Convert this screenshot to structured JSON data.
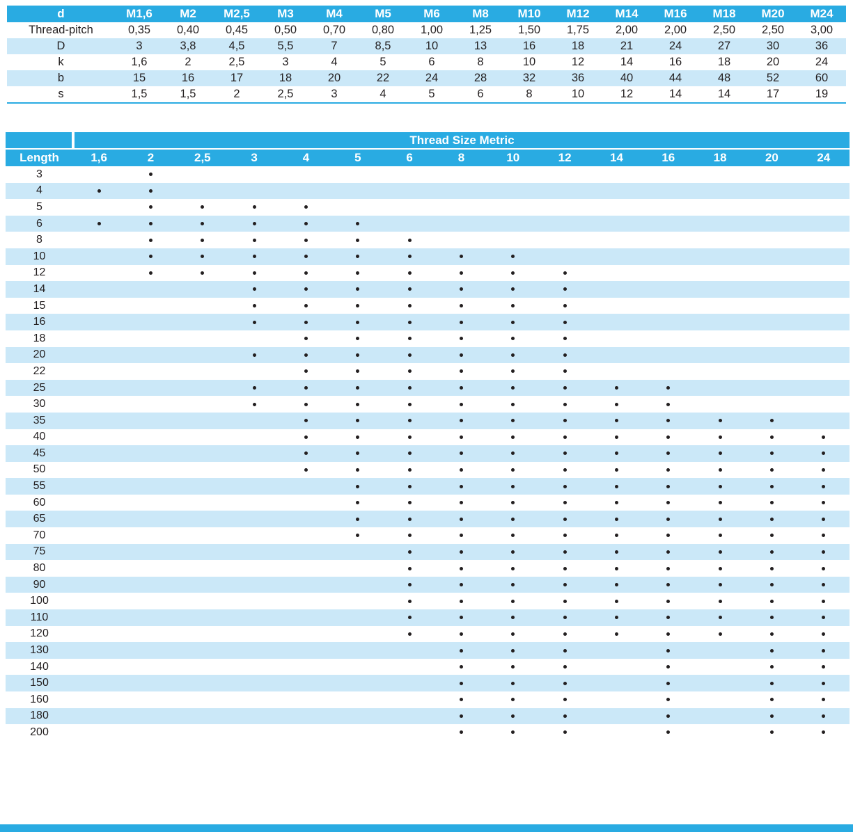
{
  "colors": {
    "accent": "#29abe2",
    "stripe": "#cbe8f8",
    "ink": "#231f20"
  },
  "dimensions_table": {
    "corner_label": "d",
    "columns": [
      "M1,6",
      "M2",
      "M2,5",
      "M3",
      "M4",
      "M5",
      "M6",
      "M8",
      "M10",
      "M12",
      "M14",
      "M16",
      "M18",
      "M20",
      "M24"
    ],
    "rows": [
      {
        "label": "Thread-pitch",
        "shaded": false,
        "values": [
          "0,35",
          "0,40",
          "0,45",
          "0,50",
          "0,70",
          "0,80",
          "1,00",
          "1,25",
          "1,50",
          "1,75",
          "2,00",
          "2,00",
          "2,50",
          "2,50",
          "3,00"
        ]
      },
      {
        "label": "D",
        "shaded": true,
        "values": [
          "3",
          "3,8",
          "4,5",
          "5,5",
          "7",
          "8,5",
          "10",
          "13",
          "16",
          "18",
          "21",
          "24",
          "27",
          "30",
          "36"
        ]
      },
      {
        "label": "k",
        "shaded": false,
        "values": [
          "1,6",
          "2",
          "2,5",
          "3",
          "4",
          "5",
          "6",
          "8",
          "10",
          "12",
          "14",
          "16",
          "18",
          "20",
          "24"
        ]
      },
      {
        "label": "b",
        "shaded": true,
        "values": [
          "15",
          "16",
          "17",
          "18",
          "20",
          "22",
          "24",
          "28",
          "32",
          "36",
          "40",
          "44",
          "48",
          "52",
          "60"
        ]
      },
      {
        "label": "s",
        "shaded": false,
        "values": [
          "1,5",
          "1,5",
          "2",
          "2,5",
          "3",
          "4",
          "5",
          "6",
          "8",
          "10",
          "12",
          "14",
          "14",
          "17",
          "19"
        ]
      }
    ]
  },
  "availability_table": {
    "span_title": "Thread Size Metric",
    "length_header": "Length",
    "size_columns": [
      "1,6",
      "2",
      "2,5",
      "3",
      "4",
      "5",
      "6",
      "8",
      "10",
      "12",
      "14",
      "16",
      "18",
      "20",
      "24"
    ],
    "rows": [
      {
        "length": "3",
        "available": [
          "2"
        ]
      },
      {
        "length": "4",
        "available": [
          "1,6",
          "2"
        ]
      },
      {
        "length": "5",
        "available": [
          "2",
          "2,5",
          "3",
          "4"
        ]
      },
      {
        "length": "6",
        "available": [
          "1,6",
          "2",
          "2,5",
          "3",
          "4",
          "5"
        ]
      },
      {
        "length": "8",
        "available": [
          "2",
          "2,5",
          "3",
          "4",
          "5",
          "6"
        ]
      },
      {
        "length": "10",
        "available": [
          "2",
          "2,5",
          "3",
          "4",
          "5",
          "6",
          "8",
          "10"
        ]
      },
      {
        "length": "12",
        "available": [
          "2",
          "2,5",
          "3",
          "4",
          "5",
          "6",
          "8",
          "10",
          "12"
        ]
      },
      {
        "length": "14",
        "available": [
          "3",
          "4",
          "5",
          "6",
          "8",
          "10",
          "12"
        ]
      },
      {
        "length": "15",
        "available": [
          "3",
          "4",
          "5",
          "6",
          "8",
          "10",
          "12"
        ]
      },
      {
        "length": "16",
        "available": [
          "3",
          "4",
          "5",
          "6",
          "8",
          "10",
          "12"
        ]
      },
      {
        "length": "18",
        "available": [
          "4",
          "5",
          "6",
          "8",
          "10",
          "12"
        ]
      },
      {
        "length": "20",
        "available": [
          "3",
          "4",
          "5",
          "6",
          "8",
          "10",
          "12"
        ]
      },
      {
        "length": "22",
        "available": [
          "4",
          "5",
          "6",
          "8",
          "10",
          "12"
        ]
      },
      {
        "length": "25",
        "available": [
          "3",
          "4",
          "5",
          "6",
          "8",
          "10",
          "12",
          "14",
          "16"
        ]
      },
      {
        "length": "30",
        "available": [
          "3",
          "4",
          "5",
          "6",
          "8",
          "10",
          "12",
          "14",
          "16"
        ]
      },
      {
        "length": "35",
        "available": [
          "4",
          "5",
          "6",
          "8",
          "10",
          "12",
          "14",
          "16",
          "18",
          "20"
        ]
      },
      {
        "length": "40",
        "available": [
          "4",
          "5",
          "6",
          "8",
          "10",
          "12",
          "14",
          "16",
          "18",
          "20",
          "24"
        ]
      },
      {
        "length": "45",
        "available": [
          "4",
          "5",
          "6",
          "8",
          "10",
          "12",
          "14",
          "16",
          "18",
          "20",
          "24"
        ]
      },
      {
        "length": "50",
        "available": [
          "4",
          "5",
          "6",
          "8",
          "10",
          "12",
          "14",
          "16",
          "18",
          "20",
          "24"
        ]
      },
      {
        "length": "55",
        "available": [
          "5",
          "6",
          "8",
          "10",
          "12",
          "14",
          "16",
          "18",
          "20",
          "24"
        ]
      },
      {
        "length": "60",
        "available": [
          "5",
          "6",
          "8",
          "10",
          "12",
          "14",
          "16",
          "18",
          "20",
          "24"
        ]
      },
      {
        "length": "65",
        "available": [
          "5",
          "6",
          "8",
          "10",
          "12",
          "14",
          "16",
          "18",
          "20",
          "24"
        ]
      },
      {
        "length": "70",
        "available": [
          "5",
          "6",
          "8",
          "10",
          "12",
          "14",
          "16",
          "18",
          "20",
          "24"
        ]
      },
      {
        "length": "75",
        "available": [
          "6",
          "8",
          "10",
          "12",
          "14",
          "16",
          "18",
          "20",
          "24"
        ]
      },
      {
        "length": "80",
        "available": [
          "6",
          "8",
          "10",
          "12",
          "14",
          "16",
          "18",
          "20",
          "24"
        ]
      },
      {
        "length": "90",
        "available": [
          "6",
          "8",
          "10",
          "12",
          "14",
          "16",
          "18",
          "20",
          "24"
        ]
      },
      {
        "length": "100",
        "available": [
          "6",
          "8",
          "10",
          "12",
          "14",
          "16",
          "18",
          "20",
          "24"
        ]
      },
      {
        "length": "110",
        "available": [
          "6",
          "8",
          "10",
          "12",
          "14",
          "16",
          "18",
          "20",
          "24"
        ]
      },
      {
        "length": "120",
        "available": [
          "6",
          "8",
          "10",
          "12",
          "14",
          "16",
          "18",
          "20",
          "24"
        ]
      },
      {
        "length": "130",
        "available": [
          "8",
          "10",
          "12",
          "16",
          "20",
          "24"
        ]
      },
      {
        "length": "140",
        "available": [
          "8",
          "10",
          "12",
          "16",
          "20",
          "24"
        ]
      },
      {
        "length": "150",
        "available": [
          "8",
          "10",
          "12",
          "16",
          "20",
          "24"
        ]
      },
      {
        "length": "160",
        "available": [
          "8",
          "10",
          "12",
          "16",
          "20",
          "24"
        ]
      },
      {
        "length": "180",
        "available": [
          "8",
          "10",
          "12",
          "16",
          "20",
          "24"
        ]
      },
      {
        "length": "200",
        "available": [
          "8",
          "10",
          "12",
          "16",
          "20",
          "24"
        ]
      }
    ]
  }
}
